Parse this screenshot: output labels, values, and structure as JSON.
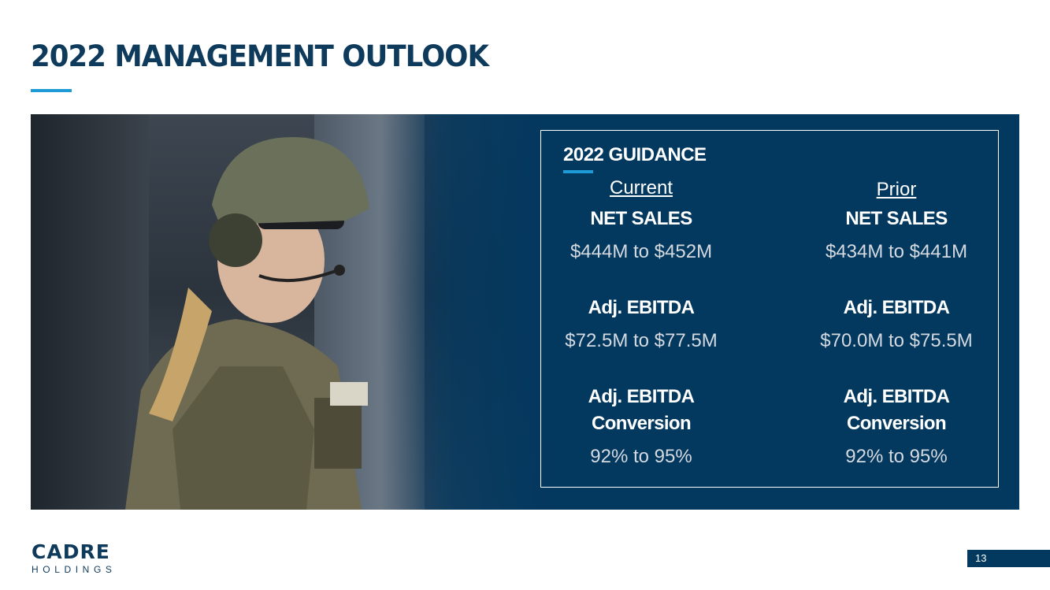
{
  "page": {
    "title": "2022 MANAGEMENT OUTLOOK",
    "page_number": "13"
  },
  "guidance": {
    "title": "2022 GUIDANCE",
    "current": {
      "heading": "Current",
      "net_sales_label": "NET SALES",
      "net_sales_value": "$444M to $452M",
      "ebitda_label": "Adj. EBITDA",
      "ebitda_value": "$72.5M to $77.5M",
      "conversion_label_line1": "Adj. EBITDA",
      "conversion_label_line2": "Conversion",
      "conversion_value": "92% to 95%"
    },
    "prior": {
      "heading": "Prior",
      "net_sales_label": "NET SALES",
      "net_sales_value": "$434M to $441M",
      "ebitda_label": "Adj. EBITDA",
      "ebitda_value": "$70.0M to $75.5M",
      "conversion_label_line1": "Adj. EBITDA",
      "conversion_label_line2": "Conversion",
      "conversion_value": "92% to 95%"
    }
  },
  "logo": {
    "main": "CADRE",
    "sub": "HOLDINGS"
  },
  "colors": {
    "navy": "#03385f",
    "title_navy": "#0e3a5c",
    "accent_blue": "#1e9bd7"
  }
}
